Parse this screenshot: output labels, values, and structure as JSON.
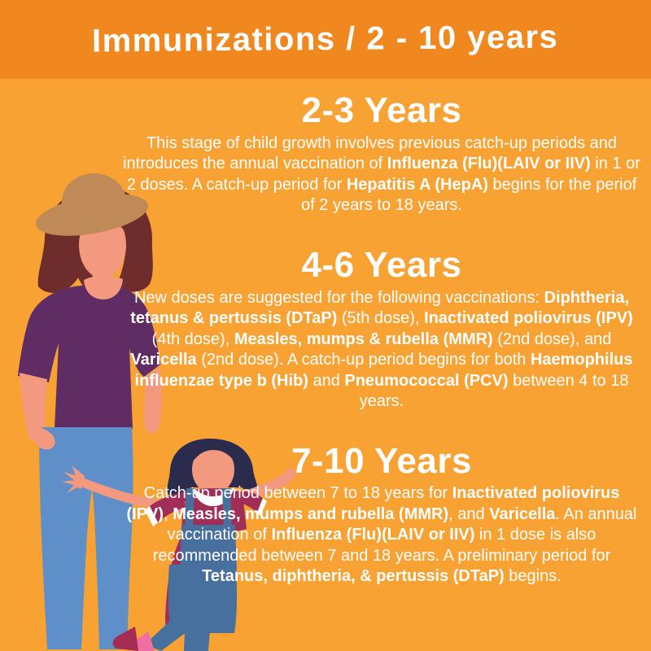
{
  "title": "Immunizations / 2 - 10 years",
  "colors": {
    "banner": "#F0881F",
    "background": "#F7A232",
    "text": "#FFFFFF"
  },
  "sections": [
    {
      "heading": "2-3 Years",
      "body": [
        {
          "t": "This stage of child growth involves previous catch-up periods and introduces the annual vaccination of ",
          "b": false
        },
        {
          "t": "Influenza (Flu)(LAIV or IIV)",
          "b": true
        },
        {
          "t": " in 1 or 2 doses. A catch-up period for ",
          "b": false
        },
        {
          "t": "Hepatitis A (HepA)",
          "b": true
        },
        {
          "t": " begins for the periof of 2 years to 18 years.",
          "b": false
        }
      ]
    },
    {
      "heading": "4-6 Years",
      "body": [
        {
          "t": "New doses are suggested for the following vaccinations: ",
          "b": false
        },
        {
          "t": "Diphtheria, tetanus & pertussis (DTaP)",
          "b": true
        },
        {
          "t": " (5th dose), ",
          "b": false
        },
        {
          "t": "Inactivated poliovirus (IPV)",
          "b": true
        },
        {
          "t": " (4th dose), ",
          "b": false
        },
        {
          "t": "Measles, mumps & rubella (MMR)",
          "b": true
        },
        {
          "t": " (2nd dose), and ",
          "b": false
        },
        {
          "t": "Varicella",
          "b": true
        },
        {
          "t": " (2nd dose). A catch-up period begins for both ",
          "b": false
        },
        {
          "t": "Haemophilus influenzae type b (Hib)",
          "b": true
        },
        {
          "t": " and ",
          "b": false
        },
        {
          "t": "Pneumococcal (PCV)",
          "b": true
        },
        {
          "t": " between 4 to 18 years.",
          "b": false
        }
      ]
    },
    {
      "heading": "7-10 Years",
      "body": [
        {
          "t": "Catch-up period between 7 to 18 years for ",
          "b": false
        },
        {
          "t": "Inactivated poliovirus (IPV)",
          "b": true
        },
        {
          "t": ", ",
          "b": false
        },
        {
          "t": "Measles, mumps and rubella (MMR)",
          "b": true
        },
        {
          "t": ", and ",
          "b": false
        },
        {
          "t": "Varicella",
          "b": true
        },
        {
          "t": ". An annual vaccination of ",
          "b": false
        },
        {
          "t": "Influenza (Flu)(LAIV or IIV)",
          "b": true
        },
        {
          "t": " in 1 dose is also recommended between 7 and 18 years. A preliminary period for ",
          "b": false
        },
        {
          "t": "Tetanus, diphtheria, & pertussis (DTaP)",
          "b": true
        },
        {
          "t": " begins.",
          "b": false
        }
      ]
    }
  ],
  "illustration": {
    "alt": "Mother wearing a hat standing beside a young girl with outstretched arms",
    "colors": {
      "skin": "#F2997F",
      "mom_hair": "#6E2D2C",
      "hat": "#C08A58",
      "top": "#5F2C63",
      "jeans": "#5E8FC9",
      "child_hair": "#2B2B4D",
      "child_shirt": "#A02E56",
      "overalls": "#47709F",
      "collar": "#FFFFFF",
      "sock_pink": "#F06FA2",
      "shoe": "#A62B52"
    }
  }
}
